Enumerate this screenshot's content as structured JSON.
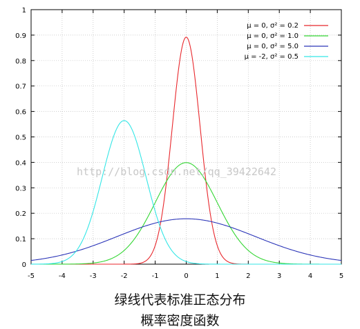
{
  "chart_data": {
    "type": "line",
    "xlim": [
      -5,
      5
    ],
    "ylim": [
      0,
      1
    ],
    "x_ticks": [
      -5,
      -4,
      -3,
      -2,
      -1,
      0,
      1,
      2,
      3,
      4,
      5
    ],
    "y_ticks": [
      0,
      0.1,
      0.2,
      0.3,
      0.4,
      0.5,
      0.6,
      0.7,
      0.8,
      0.9,
      1
    ],
    "x_tick_labels": [
      "-5",
      "-4",
      "-3",
      "-2",
      "-1",
      "0",
      "1",
      "2",
      "3",
      "4",
      "5"
    ],
    "y_tick_labels": [
      "0",
      "0.1",
      "0.2",
      "0.3",
      "0.4",
      "0.5",
      "0.6",
      "0.7",
      "0.8",
      "0.9",
      "1"
    ],
    "grid": true,
    "legend_position": "top-right",
    "series": [
      {
        "name": "μ = 0, σ² = 0.2",
        "mu": 0,
        "variance": 0.2,
        "color": "#e8262b"
      },
      {
        "name": "μ = 0, σ² = 1.0",
        "mu": 0,
        "variance": 1.0,
        "color": "#33d633"
      },
      {
        "name": "μ = 0, σ² = 5.0",
        "mu": 0,
        "variance": 5.0,
        "color": "#2b35b8"
      },
      {
        "name": "μ = -2, σ² = 0.5",
        "mu": -2,
        "variance": 0.5,
        "color": "#33e6e6"
      }
    ]
  },
  "watermark": "http://blog.csdn.net/qq_39422642",
  "caption": {
    "line1": "绿线代表标准正态分布",
    "line2": "概率密度函数"
  }
}
